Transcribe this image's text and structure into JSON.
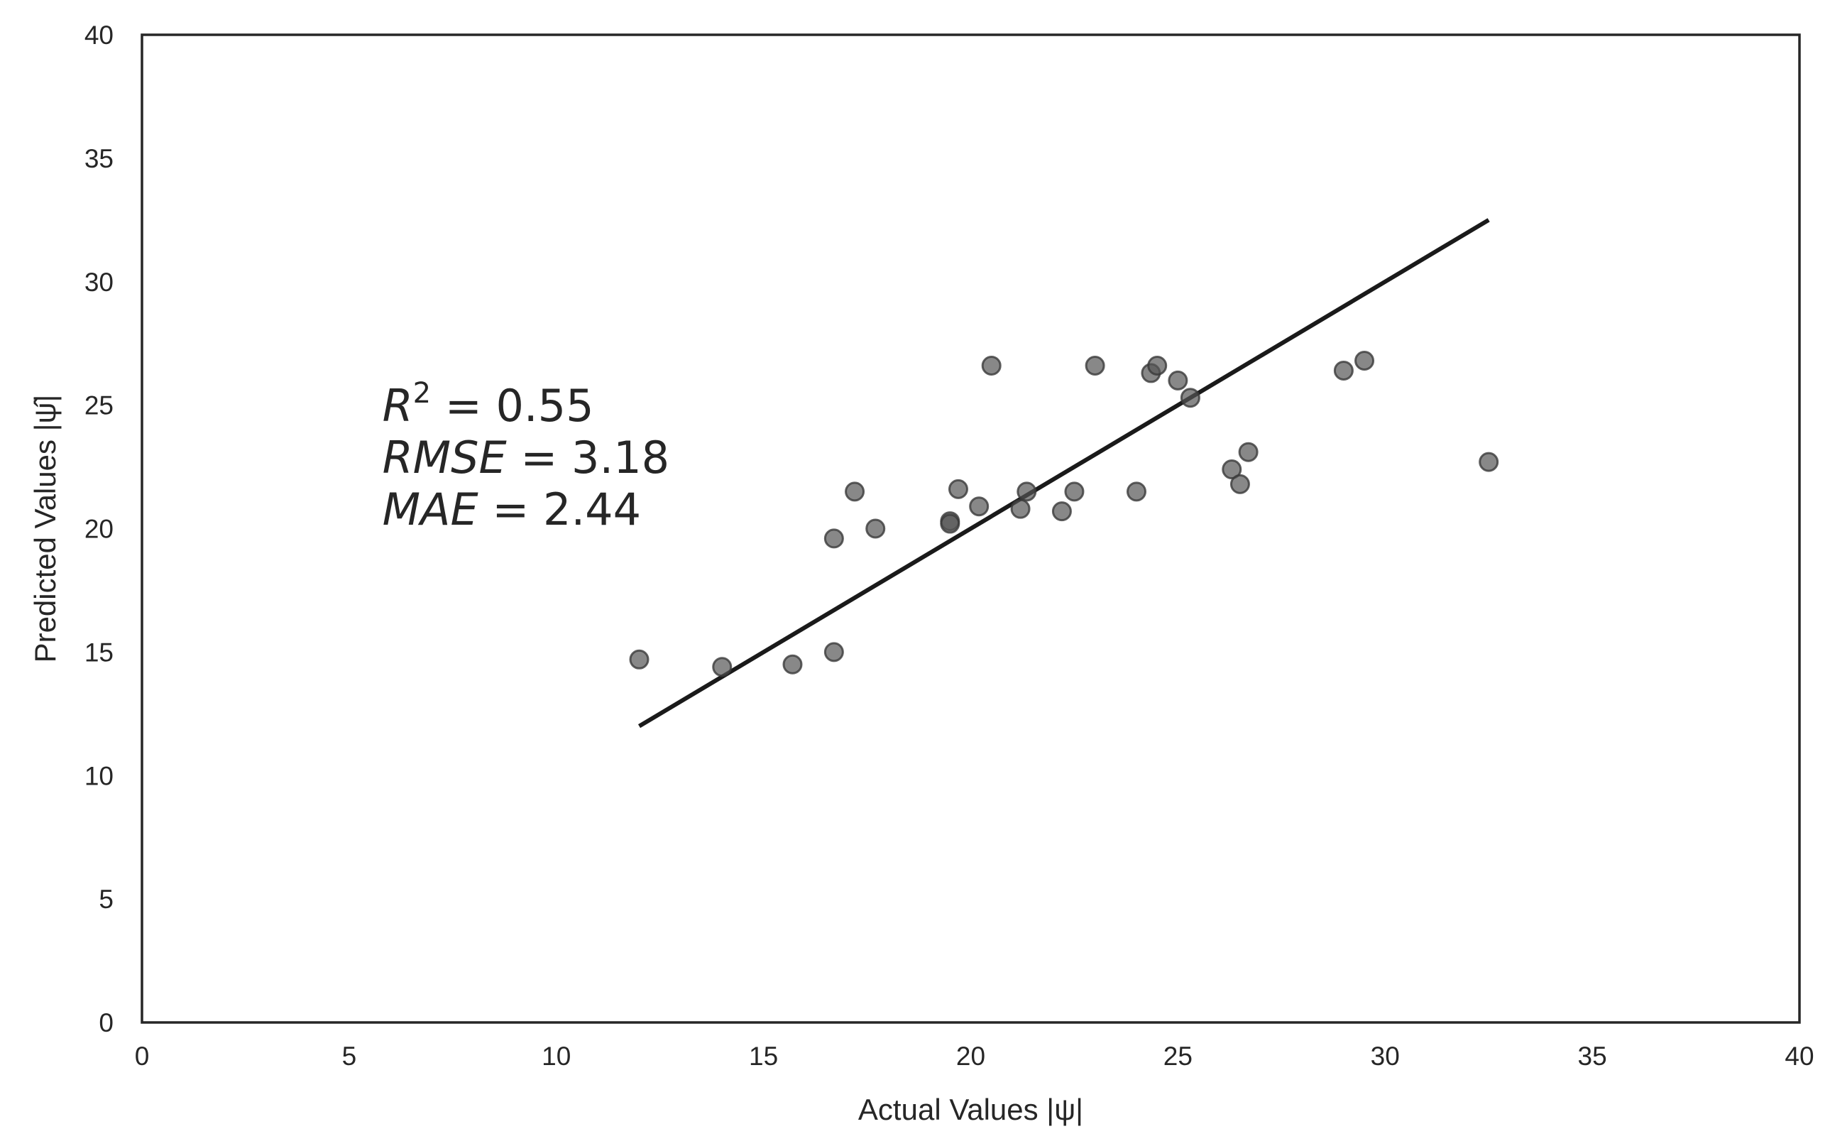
{
  "chart_data": {
    "type": "scatter",
    "xlabel": "Actual Values |ψ|",
    "ylabel": "Predicted Values |ψ̂|",
    "xlim": [
      0,
      40
    ],
    "ylim": [
      0,
      40
    ],
    "xticks": [
      0,
      5,
      10,
      15,
      20,
      25,
      30,
      35,
      40
    ],
    "yticks": [
      0,
      5,
      10,
      15,
      20,
      25,
      30,
      35,
      40
    ],
    "grid": false,
    "series": [
      {
        "type": "scatter",
        "color": "#555555",
        "points": [
          [
            12.0,
            14.7
          ],
          [
            14.0,
            14.4
          ],
          [
            15.7,
            14.5
          ],
          [
            16.7,
            15.0
          ],
          [
            16.7,
            19.6
          ],
          [
            17.2,
            21.5
          ],
          [
            17.7,
            20.0
          ],
          [
            19.5,
            20.3
          ],
          [
            19.5,
            20.2
          ],
          [
            19.7,
            21.6
          ],
          [
            20.2,
            20.9
          ],
          [
            20.5,
            26.6
          ],
          [
            21.2,
            20.8
          ],
          [
            21.35,
            21.5
          ],
          [
            22.2,
            20.7
          ],
          [
            22.5,
            21.5
          ],
          [
            23.0,
            26.6
          ],
          [
            24.0,
            21.5
          ],
          [
            24.35,
            26.3
          ],
          [
            24.5,
            26.6
          ],
          [
            25.0,
            26.0
          ],
          [
            25.3,
            25.3
          ],
          [
            26.3,
            22.4
          ],
          [
            26.5,
            21.8
          ],
          [
            26.7,
            23.1
          ],
          [
            29.0,
            26.4
          ],
          [
            29.5,
            26.8
          ],
          [
            32.5,
            22.7
          ]
        ]
      },
      {
        "type": "line",
        "color": "#1a1a1a",
        "points": [
          [
            12.0,
            12.0
          ],
          [
            32.5,
            32.5
          ]
        ]
      }
    ],
    "annotations": {
      "r2": {
        "label": "R",
        "sup": "2",
        "eq": " = ",
        "value": "0.55"
      },
      "rmse": {
        "label": "RMSE",
        "eq": " = ",
        "value": "3.18"
      },
      "mae": {
        "label": "MAE",
        "eq": " = ",
        "value": "2.44"
      }
    }
  }
}
